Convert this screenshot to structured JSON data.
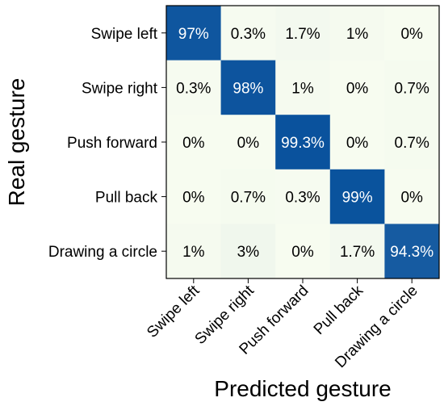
{
  "chart_data": {
    "type": "heatmap",
    "xlabel": "Predicted gesture",
    "ylabel": "Real gesture",
    "x_categories": [
      "Swipe left",
      "Swipe right",
      "Push forward",
      "Pull back",
      "Drawing a circle"
    ],
    "y_categories": [
      "Swipe left",
      "Swipe right",
      "Push forward",
      "Pull back",
      "Drawing a circle"
    ],
    "values": [
      [
        97,
        0.3,
        1.7,
        1,
        0
      ],
      [
        0.3,
        98,
        1,
        0,
        0.7
      ],
      [
        0,
        0,
        99.3,
        0,
        0.7
      ],
      [
        0,
        0.7,
        0.3,
        99,
        0
      ],
      [
        1,
        3,
        0,
        1.7,
        94.3
      ]
    ],
    "cell_labels": [
      [
        "97%",
        "0.3%",
        "1.7%",
        "1%",
        "0%"
      ],
      [
        "0.3%",
        "98%",
        "1%",
        "0%",
        "0.7%"
      ],
      [
        "0%",
        "0%",
        "99.3%",
        "0%",
        "0.7%"
      ],
      [
        "0%",
        "0.7%",
        "0.3%",
        "99%",
        "0%"
      ],
      [
        "1%",
        "3%",
        "0%",
        "1.7%",
        "94.3%"
      ]
    ],
    "colormap": "Blues",
    "color_low": "#f7fcf0",
    "color_high": "#08519c",
    "vmin": 0,
    "vmax": 100
  }
}
